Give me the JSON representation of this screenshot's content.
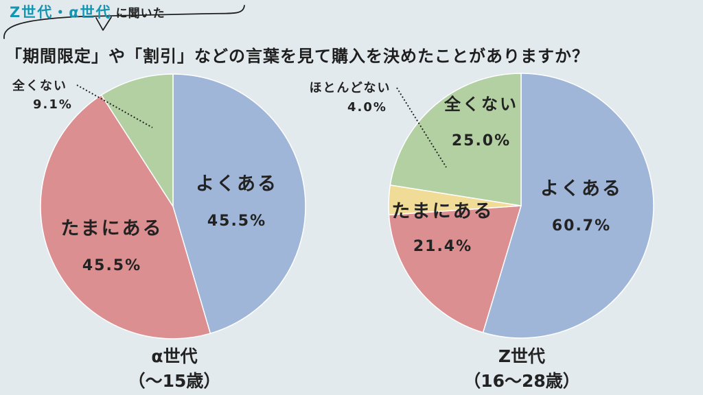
{
  "header": {
    "tag_accent": "Z世代・α世代",
    "tag_rest": "に聞いた",
    "question": "「期間限定」や「割引」などの言葉を見て購入を決めたことがありますか？"
  },
  "colors": {
    "yoku": "#9fb6d8",
    "tama": "#dc8f90",
    "hotondo": "#f1dc97",
    "mattaku": "#b3d0a3",
    "background": "#e3eaed"
  },
  "chart_data": [
    {
      "type": "pie",
      "title": "α世代",
      "subtitle": "（〜15歳）",
      "slices": [
        {
          "label": "よくある",
          "value": 45.5,
          "value_text": "45.5%",
          "color_key": "yoku"
        },
        {
          "label": "たまにある",
          "value": 45.5,
          "value_text": "45.5%",
          "color_key": "tama"
        },
        {
          "label": "全くない",
          "value": 9.1,
          "value_text": "9.1%",
          "color_key": "mattaku"
        }
      ]
    },
    {
      "type": "pie",
      "title": "Z世代",
      "subtitle": "（16〜28歳）",
      "slices": [
        {
          "label": "よくある",
          "value": 60.7,
          "value_text": "60.7%",
          "color_key": "yoku"
        },
        {
          "label": "たまにある",
          "value": 21.4,
          "value_text": "21.4%",
          "color_key": "tama"
        },
        {
          "label": "ほとんどない",
          "value": 4.0,
          "value_text": "4.0%",
          "color_key": "hotondo"
        },
        {
          "label": "全くない",
          "value": 25.0,
          "value_text": "25.0%",
          "color_key": "mattaku"
        }
      ]
    }
  ]
}
